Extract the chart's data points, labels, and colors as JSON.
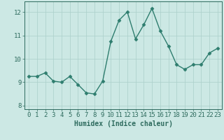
{
  "x": [
    0,
    1,
    2,
    3,
    4,
    5,
    6,
    7,
    8,
    9,
    10,
    11,
    12,
    13,
    14,
    15,
    16,
    17,
    18,
    19,
    20,
    21,
    22,
    23
  ],
  "y": [
    9.25,
    9.25,
    9.4,
    9.05,
    9.0,
    9.25,
    8.9,
    8.55,
    8.5,
    9.05,
    10.75,
    11.65,
    12.0,
    10.85,
    11.45,
    12.15,
    11.2,
    10.55,
    9.75,
    9.55,
    9.75,
    9.75,
    10.25,
    10.45
  ],
  "line_color": "#2e7d6e",
  "marker": "D",
  "marker_size": 2.5,
  "bg_color": "#cce8e4",
  "grid_color": "#aacfca",
  "xlabel": "Humidex (Indice chaleur)",
  "ylabel": "",
  "xlim": [
    -0.5,
    23.5
  ],
  "ylim": [
    7.85,
    12.45
  ],
  "yticks": [
    8,
    9,
    10,
    11,
    12
  ],
  "xticks": [
    0,
    1,
    2,
    3,
    4,
    5,
    6,
    7,
    8,
    9,
    10,
    11,
    12,
    13,
    14,
    15,
    16,
    17,
    18,
    19,
    20,
    21,
    22,
    23
  ],
  "xlabel_fontsize": 7,
  "tick_fontsize": 6.5,
  "tick_color": "#2e6b5e",
  "axis_color": "#2e6b5e",
  "line_width": 1.0
}
